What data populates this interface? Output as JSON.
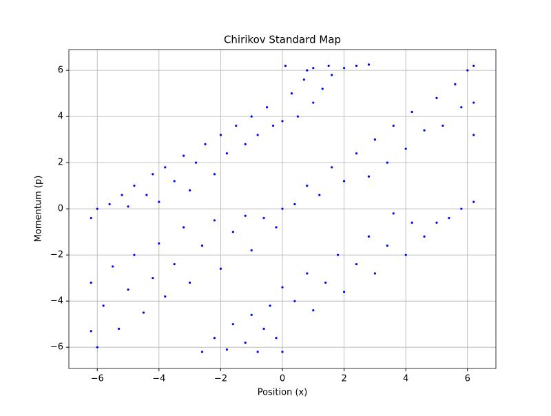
{
  "chart_data": {
    "type": "scatter",
    "title": "Chirikov Standard Map",
    "x_label": "Position (x)",
    "y_label": "Momentum (p)",
    "color": "#0000ff",
    "grid": true,
    "xlim": [
      -6.92,
      6.92
    ],
    "ylim": [
      -6.92,
      6.9
    ],
    "xticks": [
      {
        "value": -6,
        "label": "−6"
      },
      {
        "value": -4,
        "label": "−4"
      },
      {
        "value": -2,
        "label": "−2"
      },
      0,
      2,
      4,
      6
    ],
    "yticks": [
      {
        "value": -6,
        "label": "−6"
      },
      {
        "value": -4,
        "label": "−4"
      },
      {
        "value": -2,
        "label": "−2"
      },
      0,
      2,
      4,
      6
    ],
    "x": [
      -6.2,
      -6,
      -5.6,
      -5.2,
      -5,
      -4.8,
      -4.4,
      -4.2,
      -4,
      -3.8,
      -3.5,
      -3.2,
      -3,
      -2.8,
      -2.5,
      -2.2,
      -2,
      -1.8,
      -1.5,
      -1.2,
      -1,
      -0.8,
      -0.5,
      -0.3,
      0,
      0.1,
      0.3,
      0.5,
      0.7,
      1,
      1,
      1.3,
      1.6,
      2,
      2.4,
      2.8,
      0.8,
      1.5,
      -6.2,
      -6.2,
      -6,
      -5.8,
      -5.5,
      -5.3,
      -5,
      -4.8,
      -4.5,
      -4.2,
      -4,
      -3.8,
      -3.5,
      -3.2,
      -3,
      -2.6,
      -2.2,
      -2,
      -1.6,
      -1.2,
      -1,
      -0.6,
      -0.2,
      0,
      0.4,
      0.8,
      1.2,
      1.6,
      2,
      2.4,
      2.8,
      3,
      3.4,
      3.6,
      4,
      4.2,
      4.6,
      5,
      5.2,
      5.6,
      5.8,
      6,
      6.2,
      6.2,
      6.2,
      -2.6,
      -2.2,
      -1.8,
      -1.6,
      -1.2,
      -1,
      -0.8,
      -0.6,
      -0.4,
      -0.2,
      0,
      0,
      0.4,
      0.8,
      1,
      1.4,
      1.8,
      2,
      2.4,
      2.8,
      3,
      3.4,
      3.6,
      4,
      4.2,
      4.6,
      5,
      5.4,
      5.8,
      6.2
    ],
    "y": [
      -0.4,
      0,
      0.2,
      0.6,
      0.1,
      1,
      0.6,
      1.5,
      0.3,
      1.8,
      1.2,
      2.3,
      0.8,
      2,
      2.8,
      1.5,
      3.2,
      2.4,
      3.6,
      2.8,
      4,
      3.2,
      4.4,
      3.6,
      3.8,
      6.2,
      5,
      4,
      5.6,
      6.1,
      4.6,
      5.2,
      5.8,
      6.1,
      6.2,
      6.25,
      6,
      6.2,
      -3.2,
      -5.3,
      -6,
      -4.2,
      -2.5,
      -5.2,
      -3.5,
      -2,
      -4.5,
      -3,
      -1.5,
      -3.8,
      -2.4,
      -0.8,
      -3.2,
      -1.6,
      -0.5,
      -2.6,
      -1,
      -0.3,
      -1.8,
      -0.4,
      -0.8,
      0,
      0.2,
      1,
      0.6,
      1.8,
      1.2,
      2.4,
      1.4,
      3,
      2,
      3.6,
      2.6,
      4.2,
      3.4,
      4.8,
      3.6,
      5.4,
      4.4,
      6,
      6.2,
      4.6,
      3.2,
      -6.2,
      -5.6,
      -6.1,
      -5,
      -5.8,
      -4.6,
      -6.2,
      -5.2,
      -4.2,
      -5.6,
      -6.2,
      -3.4,
      -4,
      -2.8,
      -4.4,
      -3.2,
      -2,
      -3.6,
      -2.4,
      -1.2,
      -2.8,
      -1.6,
      -0.2,
      -2,
      -0.6,
      -1.2,
      -0.6,
      -0.4,
      0,
      0.3
    ]
  }
}
